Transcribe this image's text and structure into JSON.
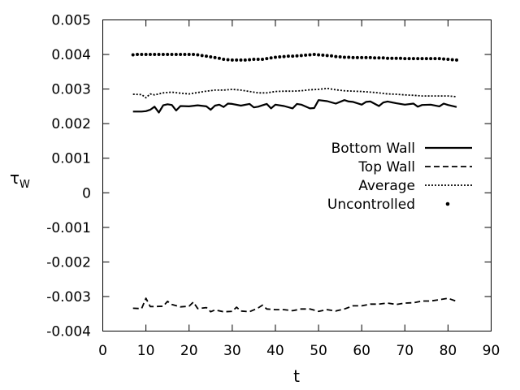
{
  "chart_data": {
    "type": "line",
    "xlabel": "t",
    "ylabel": "τ",
    "ylabel_subscript": "W",
    "xlim": [
      0,
      90
    ],
    "ylim": [
      -0.004,
      0.005
    ],
    "x_ticks": [
      "0",
      "10",
      "20",
      "30",
      "40",
      "50",
      "60",
      "70",
      "80",
      "90"
    ],
    "y_ticks": [
      "-0.004",
      "-0.003",
      "-0.002",
      "-0.001",
      "0",
      "0.001",
      "0.002",
      "0.003",
      "0.004",
      "0.005"
    ],
    "grid": false,
    "legend_position": "right",
    "series": [
      {
        "name": "Bottom Wall",
        "style": "solid",
        "x": [
          7,
          9,
          10,
          11,
          12,
          13,
          14,
          15,
          16,
          17,
          18,
          20,
          22,
          24,
          25,
          26,
          27,
          28,
          29,
          30,
          32,
          34,
          35,
          36,
          37,
          38,
          39,
          40,
          42,
          44,
          45,
          46,
          48,
          49,
          50,
          52,
          54,
          56,
          57,
          58,
          60,
          61,
          62,
          64,
          65,
          66,
          68,
          70,
          72,
          73,
          74,
          76,
          78,
          79,
          80,
          82
        ],
        "y": [
          0.00235,
          0.00235,
          0.00236,
          0.0024,
          0.00249,
          0.00232,
          0.00253,
          0.00256,
          0.00254,
          0.00238,
          0.00251,
          0.0025,
          0.00253,
          0.0025,
          0.0024,
          0.00252,
          0.00255,
          0.00248,
          0.00258,
          0.00257,
          0.00252,
          0.00257,
          0.00247,
          0.00249,
          0.00253,
          0.00257,
          0.00244,
          0.00255,
          0.00251,
          0.00244,
          0.00257,
          0.00255,
          0.00244,
          0.00245,
          0.00268,
          0.00265,
          0.00258,
          0.00268,
          0.00264,
          0.00263,
          0.00255,
          0.00263,
          0.00264,
          0.00251,
          0.00261,
          0.00264,
          0.00259,
          0.00255,
          0.00258,
          0.00249,
          0.00254,
          0.00255,
          0.0025,
          0.00258,
          0.00254,
          0.00248
        ]
      },
      {
        "name": "Top Wall",
        "style": "dashed",
        "x": [
          7,
          9,
          10,
          11,
          12,
          14,
          15,
          16,
          18,
          20,
          21,
          22,
          24,
          25,
          26,
          28,
          30,
          31,
          32,
          34,
          36,
          37,
          38,
          40,
          42,
          44,
          46,
          48,
          50,
          52,
          54,
          56,
          58,
          60,
          62,
          64,
          66,
          68,
          70,
          72,
          74,
          76,
          78,
          80,
          82
        ],
        "y": [
          -0.00334,
          -0.00335,
          -0.00305,
          -0.00329,
          -0.00329,
          -0.00328,
          -0.00314,
          -0.00323,
          -0.0033,
          -0.00328,
          -0.00316,
          -0.00335,
          -0.00332,
          -0.00344,
          -0.00339,
          -0.00344,
          -0.00343,
          -0.00331,
          -0.00342,
          -0.00344,
          -0.00333,
          -0.00325,
          -0.00336,
          -0.00338,
          -0.00338,
          -0.00341,
          -0.00336,
          -0.00336,
          -0.00343,
          -0.00338,
          -0.00342,
          -0.00336,
          -0.00327,
          -0.00327,
          -0.00322,
          -0.00322,
          -0.00319,
          -0.00323,
          -0.00319,
          -0.00318,
          -0.00313,
          -0.00313,
          -0.00309,
          -0.00305,
          -0.00314
        ]
      },
      {
        "name": "Average",
        "style": "dotted",
        "x": [
          7,
          9,
          10,
          11,
          12,
          14,
          16,
          18,
          20,
          22,
          24,
          26,
          28,
          30,
          32,
          34,
          36,
          38,
          40,
          42,
          44,
          46,
          48,
          50,
          52,
          54,
          56,
          58,
          60,
          62,
          64,
          66,
          68,
          70,
          72,
          74,
          76,
          78,
          80,
          82
        ],
        "y": [
          0.00285,
          0.00284,
          0.00275,
          0.00286,
          0.00283,
          0.00289,
          0.00291,
          0.00288,
          0.00286,
          0.0029,
          0.00294,
          0.00297,
          0.00297,
          0.00299,
          0.00297,
          0.00293,
          0.00289,
          0.00289,
          0.00293,
          0.00294,
          0.00294,
          0.00295,
          0.00298,
          0.00299,
          0.00302,
          0.00298,
          0.00295,
          0.00294,
          0.00293,
          0.00291,
          0.00289,
          0.00286,
          0.00285,
          0.00283,
          0.00282,
          0.0028,
          0.0028,
          0.0028,
          0.0028,
          0.00278
        ]
      },
      {
        "name": "Uncontrolled",
        "style": "points",
        "x": [
          7,
          8,
          9,
          10,
          11,
          12,
          13,
          14,
          15,
          16,
          17,
          18,
          19,
          20,
          21,
          22,
          23,
          24,
          25,
          26,
          27,
          28,
          29,
          30,
          31,
          32,
          33,
          34,
          35,
          36,
          37,
          38,
          39,
          40,
          41,
          42,
          43,
          44,
          45,
          46,
          47,
          48,
          49,
          50,
          51,
          52,
          53,
          54,
          55,
          56,
          57,
          58,
          59,
          60,
          61,
          62,
          63,
          64,
          65,
          66,
          67,
          68,
          69,
          70,
          71,
          72,
          73,
          74,
          75,
          76,
          77,
          78,
          79,
          80,
          81,
          82
        ],
        "y": [
          0.00399,
          0.004,
          0.004,
          0.004,
          0.004,
          0.004,
          0.004,
          0.004,
          0.004,
          0.004,
          0.004,
          0.004,
          0.004,
          0.004,
          0.004,
          0.00399,
          0.00397,
          0.00395,
          0.00393,
          0.00391,
          0.00389,
          0.00386,
          0.00385,
          0.00384,
          0.00384,
          0.00384,
          0.00384,
          0.00385,
          0.00386,
          0.00386,
          0.00386,
          0.00388,
          0.0039,
          0.00392,
          0.00393,
          0.00394,
          0.00395,
          0.00395,
          0.00396,
          0.00397,
          0.00398,
          0.00399,
          0.004,
          0.00399,
          0.00398,
          0.00397,
          0.00396,
          0.00394,
          0.00393,
          0.00392,
          0.00392,
          0.00391,
          0.00391,
          0.00391,
          0.00391,
          0.00391,
          0.0039,
          0.0039,
          0.0039,
          0.00389,
          0.00389,
          0.00389,
          0.00389,
          0.00388,
          0.00388,
          0.00388,
          0.00388,
          0.00388,
          0.00388,
          0.00388,
          0.00388,
          0.00388,
          0.00387,
          0.00386,
          0.00385,
          0.00384
        ]
      }
    ]
  }
}
